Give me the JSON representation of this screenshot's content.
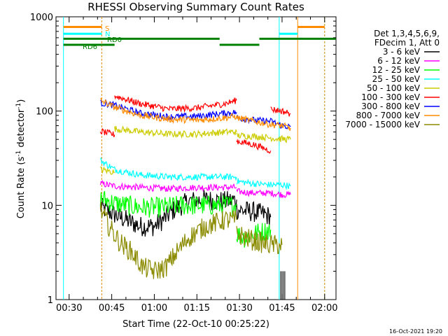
{
  "chart_data": {
    "type": "line",
    "title": "RHESSI Observing Summary Count Rates",
    "xlabel": "Start Time (22-Oct-10 00:25:22)",
    "ylabel_main": "Count Rate (s",
    "ylabel_sup": "-1",
    "ylabel_mid": " detector",
    "ylabel_sup2": "-1",
    "ylabel_end": ")",
    "y_scale": "log",
    "ylim": [
      1,
      1000
    ],
    "xlim_minutes": [
      25.37,
      124.0
    ],
    "x_ticks": [
      {
        "label": "00:30",
        "minutes": 30
      },
      {
        "label": "00:45",
        "minutes": 45
      },
      {
        "label": "01:00",
        "minutes": 60
      },
      {
        "label": "01:15",
        "minutes": 75
      },
      {
        "label": "01:30",
        "minutes": 90
      },
      {
        "label": "01:45",
        "minutes": 105
      },
      {
        "label": "02:00",
        "minutes": 120
      }
    ],
    "y_ticks": [
      {
        "label": "1",
        "value": 1
      },
      {
        "label": "10",
        "value": 10
      },
      {
        "label": "100",
        "value": 100
      },
      {
        "label": "1000",
        "value": 1000
      }
    ],
    "legend_header": [
      "Det 1,3,4,5,6,9,",
      "FDecim 1, Att 0"
    ],
    "series": [
      {
        "name": "3 - 6 keV",
        "color": "#000000",
        "segments": [
          [
            [
              41,
              9.5
            ],
            [
              46,
              8
            ],
            [
              50,
              7
            ],
            [
              55,
              6
            ],
            [
              60,
              6
            ],
            [
              63,
              7
            ],
            [
              67,
              9
            ],
            [
              72,
              11
            ],
            [
              78,
              11.5
            ],
            [
              85,
              11
            ],
            [
              89,
              11.5
            ]
          ],
          [
            [
              89,
              9
            ],
            [
              95,
              8.5
            ],
            [
              99,
              8
            ],
            [
              101,
              7.5
            ]
          ]
        ]
      },
      {
        "name": "6 - 12 keV",
        "color": "#ff00ff",
        "segments": [
          [
            [
              41,
              17
            ],
            [
              46,
              16
            ],
            [
              55,
              15.5
            ],
            [
              65,
              15
            ],
            [
              75,
              15.5
            ],
            [
              85,
              15.5
            ],
            [
              89,
              15.5
            ]
          ],
          [
            [
              89,
              14
            ],
            [
              95,
              13.5
            ],
            [
              101,
              13.5
            ],
            [
              105,
              13
            ],
            [
              108,
              13
            ]
          ]
        ]
      },
      {
        "name": "12 - 25 keV",
        "color": "#00ff00",
        "segments": [
          [
            [
              41,
              12
            ],
            [
              46,
              10.5
            ],
            [
              55,
              9.5
            ],
            [
              62,
              9.5
            ],
            [
              70,
              10
            ],
            [
              78,
              10
            ],
            [
              85,
              10
            ],
            [
              89,
              10
            ]
          ],
          [
            [
              89,
              5
            ],
            [
              92,
              4.5
            ],
            [
              95,
              5
            ],
            [
              101,
              5.5
            ]
          ]
        ]
      },
      {
        "name": "25 - 50 keV",
        "color": "#00ffff",
        "segments": [
          [
            [
              41,
              30
            ],
            [
              46,
              24
            ],
            [
              55,
              21
            ],
            [
              65,
              20
            ],
            [
              75,
              20
            ],
            [
              85,
              20
            ],
            [
              89,
              20
            ]
          ],
          [
            [
              89,
              18
            ],
            [
              95,
              17
            ],
            [
              101,
              16.5
            ],
            [
              105,
              16.5
            ],
            [
              108,
              16
            ]
          ]
        ]
      },
      {
        "name": "50 - 100 keV",
        "color": "#cccc00",
        "segments": [
          [
            [
              41,
              24
            ],
            [
              46,
              22.5
            ]
          ],
          [
            [
              46,
              65
            ],
            [
              55,
              60
            ],
            [
              65,
              57
            ],
            [
              75,
              57
            ],
            [
              85,
              60
            ],
            [
              89,
              60
            ]
          ],
          [
            [
              89,
              55
            ],
            [
              95,
              54
            ],
            [
              101,
              52
            ],
            [
              103,
              51
            ],
            [
              108,
              50
            ]
          ]
        ]
      },
      {
        "name": "100 - 300 keV",
        "color": "#ff0000",
        "segments": [
          [
            [
              41,
              61
            ],
            [
              46,
              56
            ]
          ],
          [
            [
              46,
              145
            ],
            [
              55,
              120
            ],
            [
              65,
              105
            ],
            [
              75,
              108
            ],
            [
              85,
              120
            ],
            [
              89,
              130
            ]
          ],
          [
            [
              89,
              48
            ],
            [
              95,
              44
            ],
            [
              101,
              38
            ]
          ],
          [
            [
              101,
              105
            ],
            [
              105,
              100
            ],
            [
              108,
              94
            ]
          ]
        ]
      },
      {
        "name": "300 - 800 keV",
        "color": "#0000ff",
        "segments": [
          [
            [
              41,
              122
            ],
            [
              46,
              115
            ],
            [
              55,
              95
            ],
            [
              65,
              87
            ],
            [
              75,
              88
            ],
            [
              85,
              95
            ],
            [
              89,
              97
            ]
          ],
          [
            [
              89,
              85
            ],
            [
              95,
              80
            ],
            [
              101,
              78
            ],
            [
              105,
              70
            ],
            [
              108,
              68
            ]
          ]
        ]
      },
      {
        "name": "800 - 7000 keV",
        "color": "#ff8c00",
        "segments": [
          [
            [
              41,
              130
            ],
            [
              46,
              110
            ],
            [
              55,
              90
            ],
            [
              65,
              82
            ],
            [
              75,
              80
            ],
            [
              85,
              85
            ],
            [
              89,
              88
            ]
          ],
          [
            [
              89,
              85
            ],
            [
              95,
              78
            ],
            [
              101,
              72
            ],
            [
              105,
              70
            ],
            [
              108,
              66
            ]
          ]
        ]
      },
      {
        "name": "7000 - 15000 keV",
        "color": "#8b8b00",
        "segments": [
          [
            [
              41,
              9
            ],
            [
              44,
              6
            ],
            [
              48,
              4
            ],
            [
              52,
              3.2
            ],
            [
              56,
              2.2
            ],
            [
              60,
              2.0
            ],
            [
              64,
              2.2
            ],
            [
              68,
              3.2
            ],
            [
              72,
              4.5
            ],
            [
              78,
              6
            ],
            [
              85,
              7
            ],
            [
              89,
              7
            ]
          ],
          [
            [
              89,
              5
            ],
            [
              95,
              4.2
            ],
            [
              101,
              3.8
            ],
            [
              105,
              3.8
            ]
          ]
        ]
      }
    ],
    "vertical_lines": [
      {
        "minutes": 28.0,
        "color": "#00ffff"
      },
      {
        "minutes": 41.5,
        "color": "#00ffff",
        "dashed": true
      },
      {
        "minutes": 41.5,
        "color": "#ff8c00",
        "dashed": true
      },
      {
        "minutes": 104.0,
        "color": "#00ffff"
      },
      {
        "minutes": 110.5,
        "color": "#ff8c00"
      },
      {
        "minutes": 120.0,
        "color": "#00ffff",
        "dashed": true
      },
      {
        "minutes": 120.0,
        "color": "#ff8c00",
        "dashed": true
      }
    ],
    "status_bars": [
      {
        "label": "S",
        "color": "#ff8c00",
        "level": 780,
        "segments": [
          [
            28,
            41.5
          ],
          [
            110.5,
            120
          ]
        ]
      },
      {
        "label": "N",
        "color": "#00ffff",
        "level": 660,
        "segments": [
          [
            28,
            41.5
          ],
          [
            104,
            110.5
          ]
        ]
      },
      {
        "label": "RD0",
        "color": "#008000",
        "level": 585,
        "segments": [
          [
            28,
            83
          ],
          [
            97,
            124
          ]
        ]
      },
      {
        "label": "RD6",
        "color": "#008000",
        "level": 505,
        "segments": [
          [
            28,
            41.5
          ],
          [
            41.5,
            46
          ],
          [
            83,
            97
          ]
        ]
      }
    ],
    "data_gap_marker": {
      "minutes": 104.5,
      "color": "#000000",
      "from": 1,
      "to": 2
    }
  },
  "footer": {
    "date": "16-Oct-2021 19:20"
  }
}
